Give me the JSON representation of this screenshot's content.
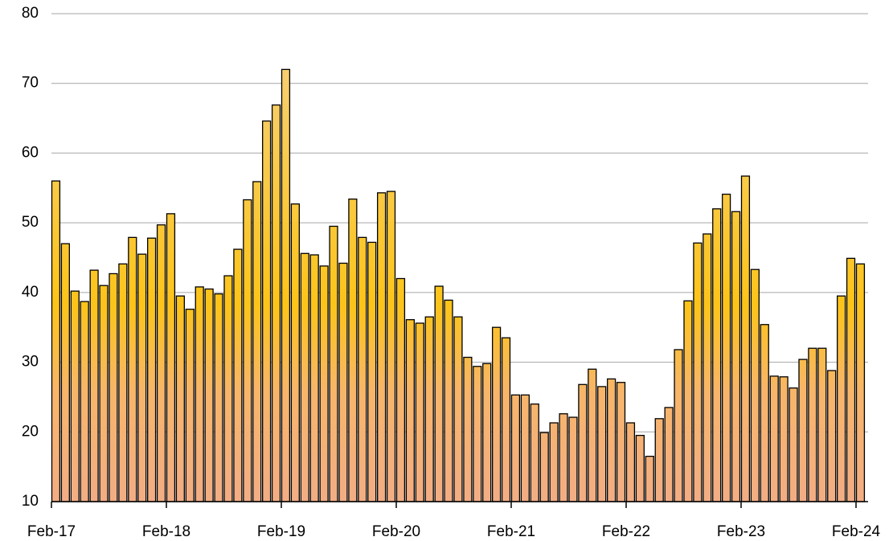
{
  "chart_data": {
    "type": "bar",
    "categories": [
      "Feb-17",
      null,
      null,
      null,
      null,
      null,
      null,
      null,
      null,
      null,
      null,
      null,
      "Feb-18",
      null,
      null,
      null,
      null,
      null,
      null,
      null,
      null,
      null,
      null,
      null,
      "Feb-19",
      null,
      null,
      null,
      null,
      null,
      null,
      null,
      null,
      null,
      null,
      null,
      "Feb-20",
      null,
      null,
      null,
      null,
      null,
      null,
      null,
      null,
      null,
      null,
      null,
      "Feb-21",
      null,
      null,
      null,
      null,
      null,
      null,
      null,
      null,
      null,
      null,
      null,
      "Feb-22",
      null,
      null,
      null,
      null,
      null,
      null,
      null,
      null,
      null,
      null,
      null,
      "Feb-23",
      null,
      null,
      null,
      null,
      null,
      null,
      null,
      null,
      null,
      null,
      null,
      "Feb-24"
    ],
    "values": [
      56.0,
      47.0,
      40.2,
      38.7,
      43.2,
      41.0,
      42.7,
      44.1,
      47.9,
      45.5,
      47.8,
      49.7,
      51.3,
      39.5,
      37.6,
      40.8,
      40.5,
      39.8,
      42.4,
      46.2,
      53.3,
      55.9,
      64.6,
      66.9,
      72.0,
      52.7,
      45.6,
      45.4,
      43.8,
      49.5,
      44.2,
      53.4,
      47.9,
      47.2,
      54.3,
      54.5,
      42.0,
      36.1,
      35.6,
      36.5,
      40.9,
      38.9,
      36.5,
      30.7,
      29.4,
      29.8,
      35.0,
      33.5,
      25.3,
      25.3,
      24.0,
      19.9,
      21.3,
      22.6,
      22.1,
      26.8,
      29.0,
      26.5,
      27.6,
      27.1,
      21.3,
      19.5,
      16.5,
      21.9,
      23.5,
      31.8,
      38.8,
      47.1,
      48.4,
      52.0,
      54.1,
      51.6,
      56.7,
      43.3,
      35.4,
      28.0,
      27.9,
      26.3,
      30.4,
      32.0,
      32.0,
      28.8,
      39.5,
      44.9,
      44.1
    ],
    "ylim": [
      10,
      80
    ],
    "yticks": [
      10,
      20,
      30,
      40,
      50,
      60,
      70,
      80
    ],
    "grid": true
  }
}
